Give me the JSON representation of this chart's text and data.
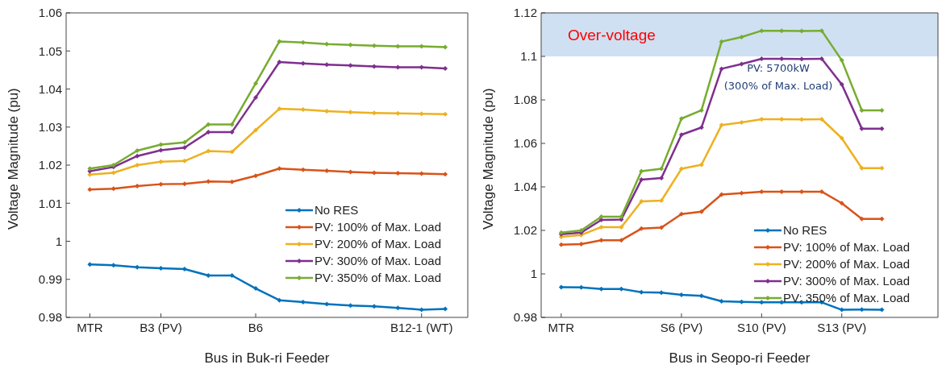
{
  "chart_data": [
    {
      "type": "line",
      "xlabel": "Bus in Buk-ri Feeder",
      "ylabel": "Voltage Magnitude (pu)",
      "categories": [
        "MTR",
        null,
        null,
        "B3 (PV)",
        null,
        null,
        null,
        "B6",
        null,
        null,
        null,
        null,
        null,
        null,
        "B12-1 (WT)",
        null
      ],
      "ylim": [
        0.98,
        1.06
      ],
      "yticks": [
        0.98,
        0.99,
        1,
        1.01,
        1.02,
        1.03,
        1.04,
        1.05,
        1.06
      ],
      "legend": "bottom right",
      "marker": "diamond",
      "line_style": "solid",
      "series": [
        {
          "name": "No RES",
          "color": "#0072bd",
          "values": [
            0.9939,
            0.9937,
            0.9932,
            0.9929,
            0.9927,
            0.991,
            0.991,
            0.9876,
            0.9845,
            0.984,
            0.9835,
            0.9831,
            0.9829,
            0.9825,
            0.982,
            0.9822
          ]
        },
        {
          "name": "PV: 100% of Max. Load",
          "color": "#d95319",
          "values": [
            1.0136,
            1.0138,
            1.0145,
            1.015,
            1.0151,
            1.0157,
            1.0156,
            1.0172,
            1.0191,
            1.0188,
            1.0185,
            1.0182,
            1.018,
            1.0179,
            1.0178,
            1.0176
          ]
        },
        {
          "name": "PV: 200% of Max. Load",
          "color": "#edb120",
          "values": [
            1.0175,
            1.018,
            1.02,
            1.0209,
            1.0211,
            1.0237,
            1.0235,
            1.0292,
            1.0348,
            1.0346,
            1.0342,
            1.0339,
            1.0337,
            1.0336,
            1.0335,
            1.0334
          ]
        },
        {
          "name": "PV: 300% of Max. Load",
          "color": "#7e2f8e",
          "values": [
            1.0184,
            1.0195,
            1.0224,
            1.0239,
            1.0246,
            1.0287,
            1.0287,
            1.0378,
            1.0471,
            1.0467,
            1.0464,
            1.0462,
            1.0459,
            1.0457,
            1.0457,
            1.0454
          ]
        },
        {
          "name": "PV: 350% of Max. Load",
          "color": "#77ac30",
          "values": [
            1.0191,
            1.02,
            1.0238,
            1.0254,
            1.026,
            1.0307,
            1.0307,
            1.0415,
            1.0525,
            1.0522,
            1.0518,
            1.0516,
            1.0514,
            1.0512,
            1.0512,
            1.051
          ]
        }
      ]
    },
    {
      "type": "line",
      "xlabel": "Bus in Seopo-ri Feeder",
      "ylabel": "Voltage Magnitude (pu)",
      "categories": [
        "MTR",
        null,
        null,
        null,
        null,
        null,
        "S6 (PV)",
        null,
        null,
        null,
        "S10 (PV)",
        null,
        null,
        null,
        "S13 (PV)",
        null,
        null
      ],
      "ylim": [
        0.98,
        1.12
      ],
      "yticks": [
        0.98,
        1,
        1.02,
        1.04,
        1.06,
        1.08,
        1.1,
        1.12
      ],
      "legend": "bottom right",
      "marker": "diamond",
      "line_style": "solid",
      "bands": [
        {
          "axis": "y",
          "from": 1.1,
          "to": 1.12,
          "label": "Over-voltage",
          "color": "#cfe0f2"
        }
      ],
      "annotations": [
        "PV: 5700kW\n(300% of Max. Load)"
      ],
      "series": [
        {
          "name": "No RES",
          "color": "#0072bd",
          "values": [
            0.9939,
            0.9938,
            0.9931,
            0.9931,
            0.9916,
            0.9914,
            0.9904,
            0.9899,
            0.9874,
            0.9871,
            0.9869,
            0.9869,
            0.9869,
            0.9869,
            0.9835,
            0.9836,
            0.9835
          ]
        },
        {
          "name": "PV: 100% of Max. Load",
          "color": "#d95319",
          "values": [
            1.0134,
            1.0137,
            1.0155,
            1.0155,
            1.0208,
            1.0213,
            1.0275,
            1.0286,
            1.0365,
            1.0371,
            1.0378,
            1.0378,
            1.0378,
            1.0378,
            1.0325,
            1.0253,
            1.0253
          ]
        },
        {
          "name": "PV: 200% of Max. Load",
          "color": "#edb120",
          "values": [
            1.017,
            1.0179,
            1.0215,
            1.0215,
            1.0333,
            1.0337,
            1.0483,
            1.0502,
            1.0684,
            1.0696,
            1.0711,
            1.0711,
            1.071,
            1.0711,
            1.0624,
            1.0486,
            1.0486
          ]
        },
        {
          "name": "PV: 300% of Max. Load",
          "color": "#7e2f8e",
          "values": [
            1.0182,
            1.019,
            1.0248,
            1.025,
            1.0433,
            1.0441,
            1.064,
            1.0673,
            1.0943,
            1.0965,
            1.0989,
            1.0989,
            1.0988,
            1.0989,
            1.0871,
            1.0668,
            1.0668
          ]
        },
        {
          "name": "PV: 350% of Max. Load",
          "color": "#77ac30",
          "values": [
            1.019,
            1.02,
            1.0263,
            1.0263,
            1.0472,
            1.0483,
            1.0714,
            1.0752,
            1.1068,
            1.1089,
            1.1118,
            1.1118,
            1.1117,
            1.1118,
            1.0982,
            1.0752,
            1.0752
          ]
        }
      ]
    }
  ]
}
